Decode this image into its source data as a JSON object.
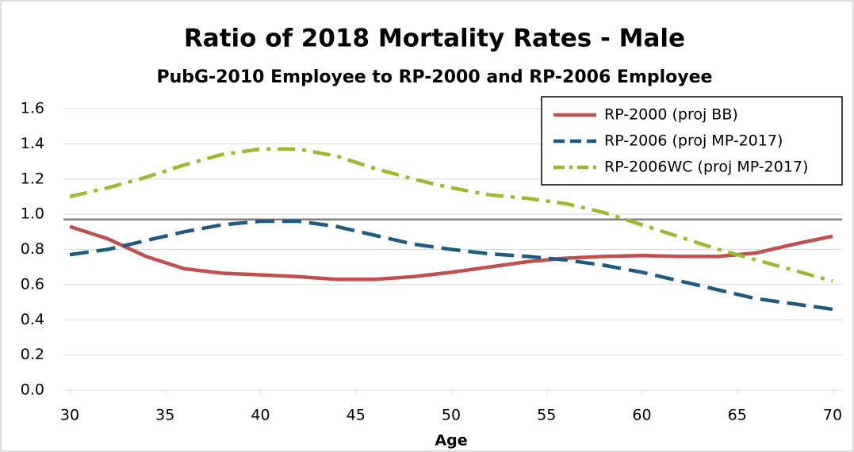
{
  "chart_data": {
    "type": "line",
    "title": "Ratio of 2018 Mortality Rates - Male",
    "subtitle": "PubG-2010 Employee to RP-2000 and RP-2006 Employee",
    "xlabel": "Age",
    "x": [
      30,
      32,
      34,
      36,
      38,
      40,
      42,
      44,
      46,
      48,
      50,
      52,
      54,
      56,
      58,
      60,
      62,
      64,
      66,
      68,
      70
    ],
    "series": [
      {
        "name": "RP-2000 (proj BB)",
        "color": "#c0504d",
        "dash": "solid",
        "values": [
          0.93,
          0.86,
          0.76,
          0.69,
          0.665,
          0.655,
          0.645,
          0.63,
          0.63,
          0.645,
          0.67,
          0.7,
          0.73,
          0.75,
          0.76,
          0.765,
          0.76,
          0.76,
          0.78,
          0.83,
          0.875
        ]
      },
      {
        "name": "RP-2006 (proj MP-2017)",
        "color": "#1f5a82",
        "dash": "dash",
        "values": [
          0.77,
          0.8,
          0.85,
          0.9,
          0.94,
          0.96,
          0.96,
          0.93,
          0.88,
          0.83,
          0.8,
          0.775,
          0.76,
          0.74,
          0.71,
          0.67,
          0.62,
          0.57,
          0.52,
          0.49,
          0.46
        ]
      },
      {
        "name": "RP-2006WC (proj MP-2017)",
        "color": "#9bbb2f",
        "dash": "dashdot",
        "values": [
          1.1,
          1.15,
          1.21,
          1.28,
          1.34,
          1.37,
          1.37,
          1.33,
          1.26,
          1.2,
          1.15,
          1.11,
          1.09,
          1.06,
          1.01,
          0.94,
          0.87,
          0.8,
          0.74,
          0.68,
          0.62
        ]
      }
    ],
    "reference_line": 0.97,
    "xlim": [
      30,
      70
    ],
    "xticks": [
      30,
      35,
      40,
      45,
      50,
      55,
      60,
      65,
      70
    ],
    "ylim": [
      0,
      1.6
    ],
    "yticks": [
      {
        "value": 0,
        "label": "0.0"
      },
      0.2,
      0.4,
      0.6,
      0.8,
      {
        "value": 1,
        "label": "1.0"
      },
      1.2,
      1.4,
      1.6
    ],
    "grid": true,
    "legend": "upper right"
  }
}
